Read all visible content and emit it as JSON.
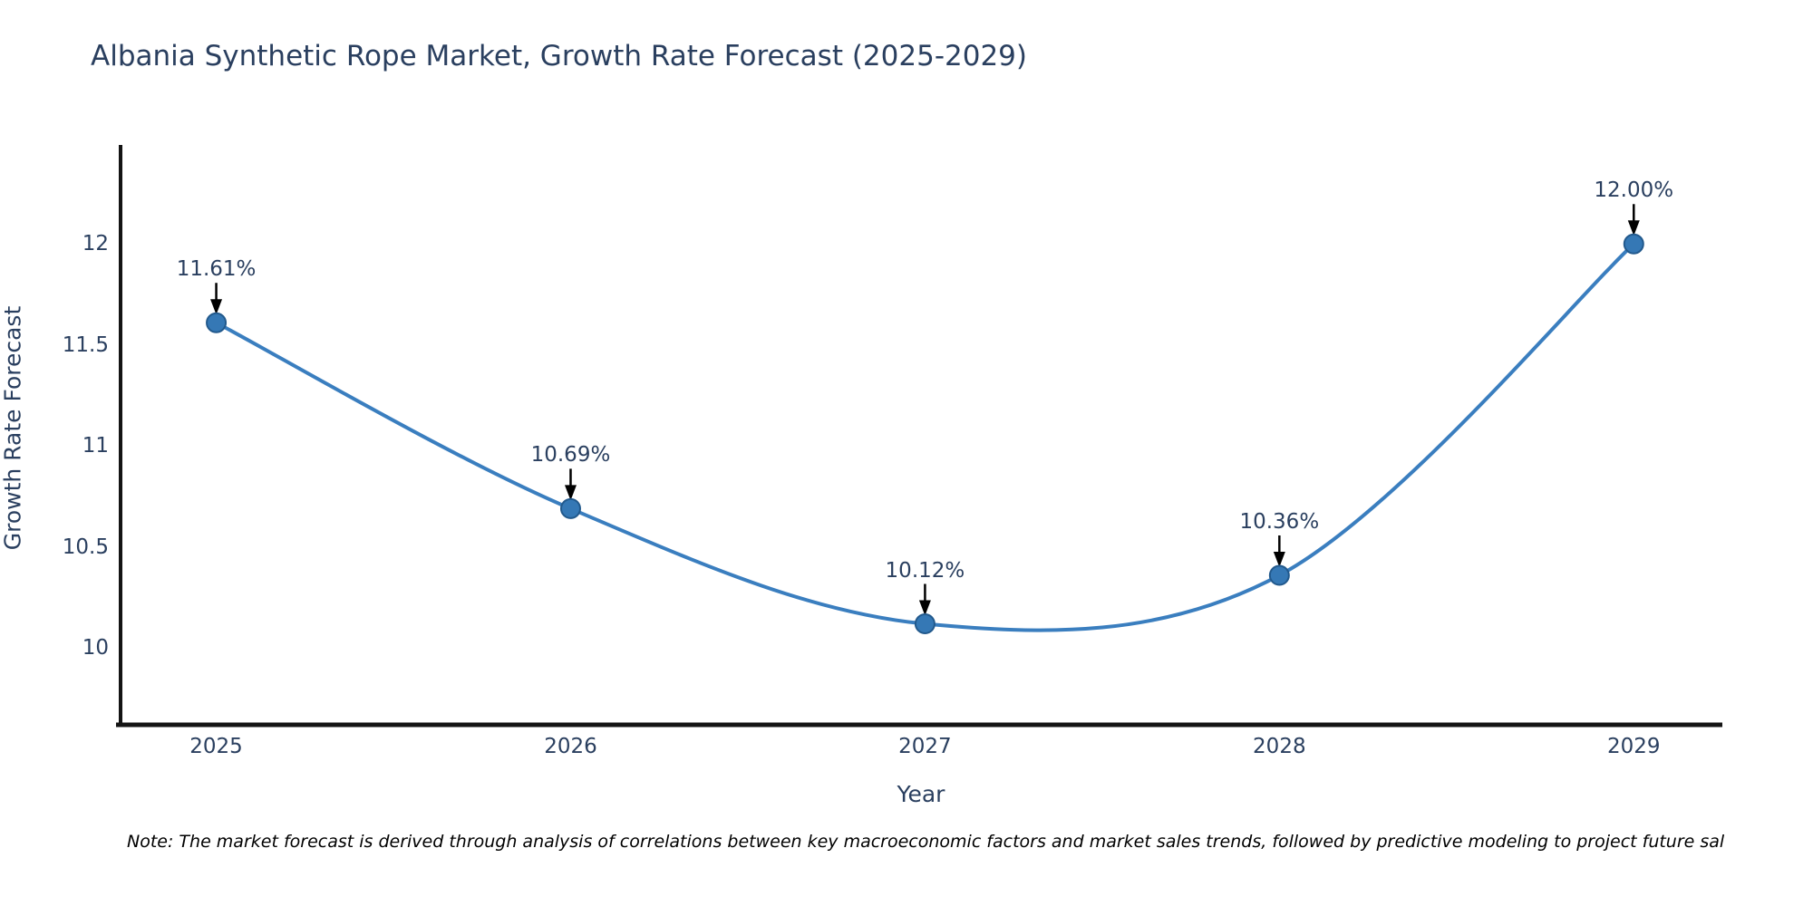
{
  "chart_data": {
    "type": "line",
    "title": "Albania Synthetic Rope Market, Growth Rate Forecast (2025-2029)",
    "xlabel": "Year",
    "ylabel": "Growth Rate Forecast",
    "categories": [
      "2025",
      "2026",
      "2027",
      "2028",
      "2029"
    ],
    "x": [
      2025,
      2026,
      2027,
      2028,
      2029
    ],
    "series": [
      {
        "name": "Growth Rate Forecast",
        "values": [
          11.61,
          10.69,
          10.12,
          10.36,
          12.0
        ],
        "point_labels": [
          "11.61%",
          "10.69%",
          "10.12%",
          "10.36%",
          "12.00%"
        ]
      }
    ],
    "yticks": [
      10,
      10.5,
      11,
      11.5,
      12
    ],
    "ytick_labels": [
      "10",
      "10.5",
      "11",
      "11.5",
      "12"
    ],
    "xlim": [
      2024.73,
      2029.25
    ],
    "ylim": [
      9.62,
      12.49
    ],
    "grid": false,
    "legend_position": "none",
    "line_shape": "spline",
    "colors": {
      "line": "#3a7ebf",
      "marker_fill": "#3578b5",
      "marker_edge": "#22598c",
      "annotation_arrow": "#000000",
      "axis_spine": "#141414",
      "text": "#2a3f5f"
    }
  },
  "note": "Note: The market forecast is derived through analysis of correlations between key macroeconomic factors and market sales trends, followed by predictive modeling to project future sal"
}
